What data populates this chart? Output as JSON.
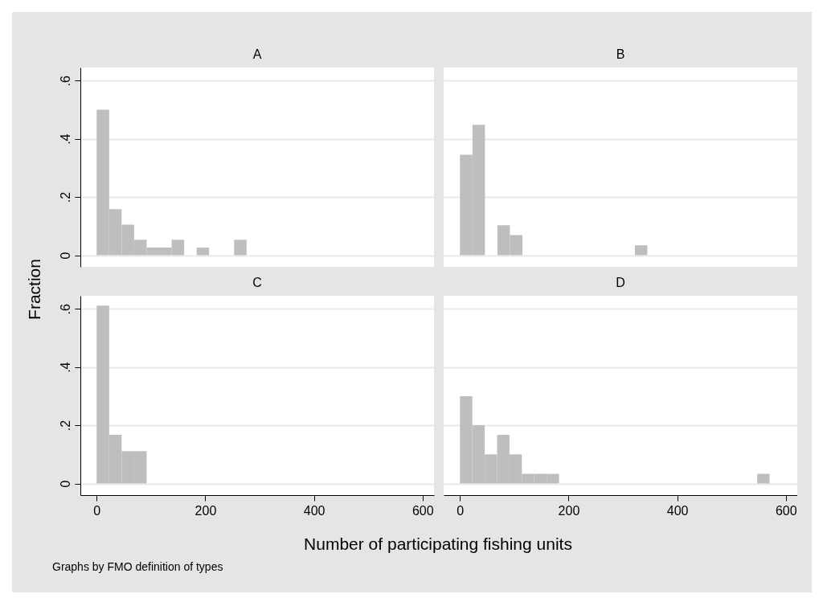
{
  "chart_data": [
    {
      "type": "histogram",
      "title": "A",
      "ylabel": "Fraction",
      "color": "#bebebe",
      "bins": [
        0,
        23,
        46,
        69,
        92,
        115,
        138,
        161,
        184,
        207,
        230,
        253,
        276
      ],
      "values": [
        0.5,
        0.158,
        0.105,
        0.053,
        0.026,
        0.026,
        0.053,
        0,
        0.026,
        0,
        0,
        0.053
      ],
      "xlim": [
        -30,
        621
      ],
      "ylim": [
        -0.04,
        0.645
      ],
      "yticks": [
        {
          "value": 0,
          "label": "0"
        },
        {
          "value": 0.2,
          "label": ".2"
        },
        {
          "value": 0.4,
          "label": ".4"
        },
        {
          "value": 0.6,
          "label": ".6"
        }
      ],
      "grid": "y",
      "tick_labels": "y"
    },
    {
      "type": "histogram",
      "title": "B",
      "color": "#bebebe",
      "bins": [
        0,
        23,
        46,
        69,
        92,
        115,
        138,
        161,
        184,
        207,
        230,
        253,
        276,
        299,
        322,
        345
      ],
      "values": [
        0.345,
        0.448,
        0,
        0.103,
        0.069,
        0,
        0,
        0,
        0,
        0,
        0,
        0,
        0,
        0,
        0.034
      ],
      "xlim": [
        -30,
        621
      ],
      "ylim": [
        -0.04,
        0.645
      ],
      "yticks": [
        0,
        0.2,
        0.4,
        0.6
      ],
      "grid": "y",
      "tick_labels": false
    },
    {
      "type": "histogram",
      "title": "C",
      "xlabel": "Number of participating fishing units",
      "color": "#bebebe",
      "annotations": [
        "Graphs by FMO definition of types"
      ],
      "bins": [
        0,
        23,
        46,
        69,
        92
      ],
      "values": [
        0.611,
        0.167,
        0.111,
        0.111
      ],
      "xlim": [
        -30,
        621
      ],
      "ylim": [
        -0.04,
        0.645
      ],
      "xticks": [
        0,
        200,
        400,
        600
      ],
      "yticks": [
        {
          "value": 0,
          "label": "0"
        },
        {
          "value": 0.2,
          "label": ".2"
        },
        {
          "value": 0.4,
          "label": ".4"
        },
        {
          "value": 0.6,
          "label": ".6"
        }
      ],
      "grid": "y"
    },
    {
      "type": "histogram",
      "title": "D",
      "color": "#bebebe",
      "bins": [
        0,
        22.8,
        45.6,
        68.4,
        91.2,
        114,
        136.8,
        159.6,
        182.4,
        205.2,
        228,
        250.8,
        273.6,
        296.4,
        319.2,
        342,
        364.8,
        387.6,
        410.4,
        433.2,
        456,
        478.8,
        501.6,
        524.4,
        547.2,
        570
      ],
      "values": [
        0.3,
        0.2,
        0.1,
        0.167,
        0.1,
        0.033,
        0.033,
        0.033,
        0,
        0,
        0,
        0,
        0,
        0,
        0,
        0,
        0,
        0,
        0,
        0,
        0,
        0,
        0,
        0,
        0.033
      ],
      "xlim": [
        -30,
        621
      ],
      "ylim": [
        -0.04,
        0.645
      ],
      "xticks": [
        0,
        200,
        400,
        600
      ],
      "yticks": [
        0,
        0.2,
        0.4,
        0.6
      ],
      "grid": "y",
      "tick_labels": "x"
    }
  ]
}
